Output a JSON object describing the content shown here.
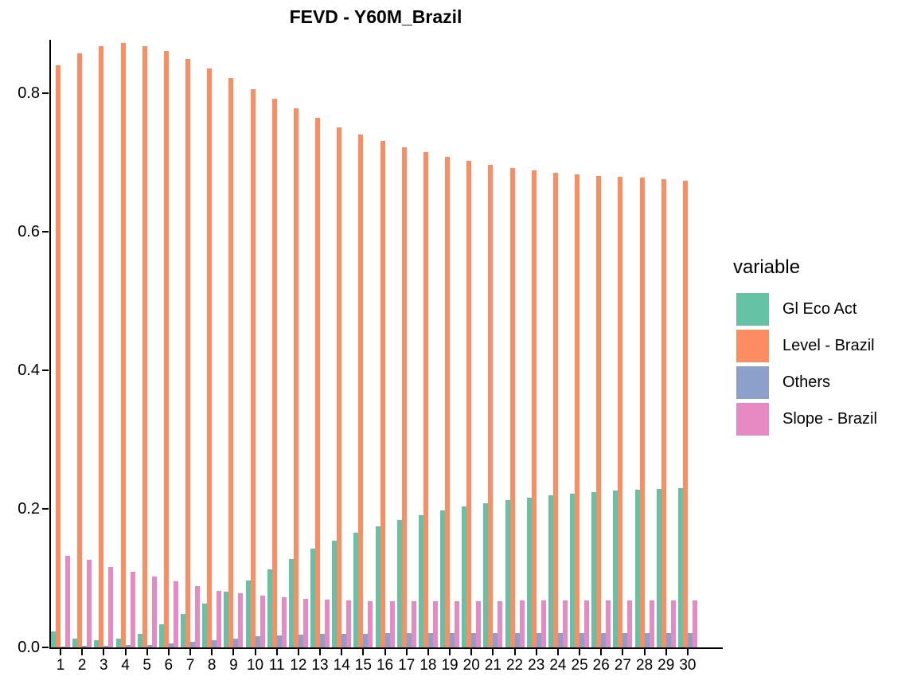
{
  "title": "FEVD - Y60M_Brazil",
  "legend": {
    "title": "variable",
    "items": [
      "Gl Eco Act",
      "Level - Brazil",
      "Others",
      "Slope - Brazil"
    ]
  },
  "chart_data": {
    "type": "bar",
    "subtype": "grouped",
    "title": "FEVD - Y60M_Brazil",
    "xlabel": "",
    "ylabel": "",
    "categories": [
      1,
      2,
      3,
      4,
      5,
      6,
      7,
      8,
      9,
      10,
      11,
      12,
      13,
      14,
      15,
      16,
      17,
      18,
      19,
      20,
      21,
      22,
      23,
      24,
      25,
      26,
      27,
      28,
      29,
      30
    ],
    "series": [
      {
        "name": "Gl Eco Act",
        "color": "#66C2A5",
        "values": [
          0.023,
          0.013,
          0.01,
          0.013,
          0.02,
          0.033,
          0.048,
          0.063,
          0.081,
          0.097,
          0.113,
          0.128,
          0.142,
          0.154,
          0.166,
          0.175,
          0.184,
          0.191,
          0.198,
          0.203,
          0.208,
          0.213,
          0.216,
          0.22,
          0.222,
          0.224,
          0.226,
          0.228,
          0.229,
          0.23
        ]
      },
      {
        "name": "Level - Brazil",
        "color": "#FC8D62",
        "values": [
          0.84,
          0.857,
          0.868,
          0.872,
          0.868,
          0.861,
          0.849,
          0.836,
          0.822,
          0.806,
          0.792,
          0.778,
          0.764,
          0.751,
          0.74,
          0.731,
          0.722,
          0.715,
          0.708,
          0.702,
          0.697,
          0.692,
          0.688,
          0.685,
          0.683,
          0.681,
          0.679,
          0.678,
          0.676,
          0.674
        ]
      },
      {
        "name": "Others",
        "color": "#8DA0CB",
        "values": [
          0.001,
          0.002,
          0.002,
          0.003,
          0.004,
          0.006,
          0.008,
          0.01,
          0.013,
          0.016,
          0.017,
          0.018,
          0.019,
          0.02,
          0.02,
          0.021,
          0.021,
          0.021,
          0.021,
          0.021,
          0.021,
          0.021,
          0.021,
          0.021,
          0.021,
          0.021,
          0.021,
          0.021,
          0.021,
          0.021
        ]
      },
      {
        "name": "Slope - Brazil",
        "color": "#E78AC3",
        "values": [
          0.132,
          0.126,
          0.116,
          0.109,
          0.102,
          0.095,
          0.088,
          0.082,
          0.078,
          0.075,
          0.072,
          0.07,
          0.069,
          0.068,
          0.067,
          0.067,
          0.067,
          0.067,
          0.067,
          0.067,
          0.067,
          0.068,
          0.068,
          0.068,
          0.068,
          0.068,
          0.068,
          0.068,
          0.068,
          0.068
        ]
      }
    ],
    "y_ticks": [
      0.0,
      0.2,
      0.4,
      0.6,
      0.8
    ],
    "ylim": [
      0,
      0.88
    ],
    "grid": false,
    "legend_title": "variable",
    "legend_position": "right",
    "axis_color": "#000000"
  }
}
